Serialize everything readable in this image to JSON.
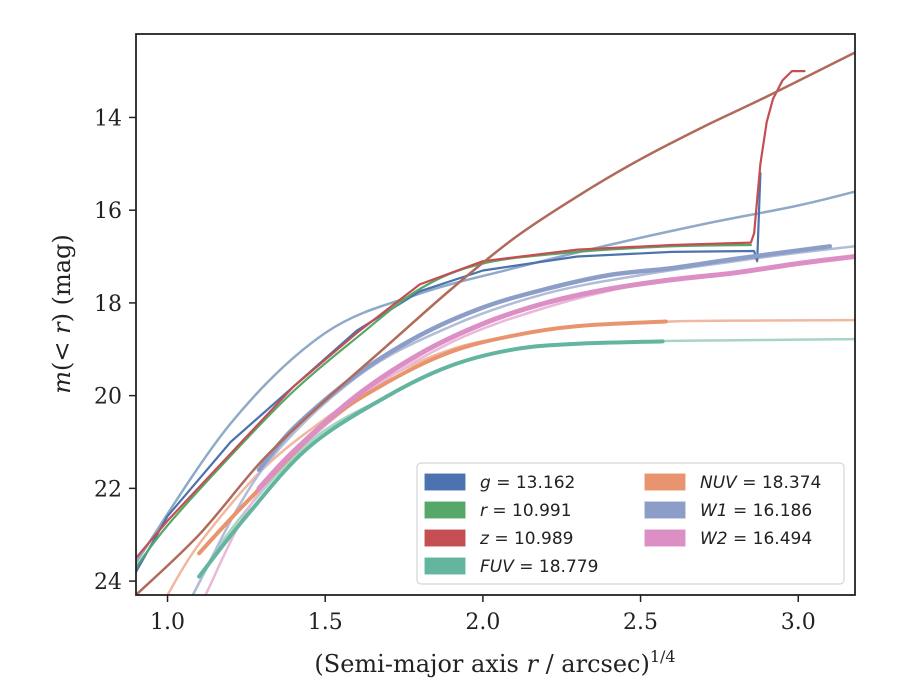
{
  "chart_data": {
    "type": "line",
    "title": "",
    "xlabel": "(Semi-major axis r / arcsec)^1/4",
    "xlabel_parts": {
      "prefix": "(Semi-major axis ",
      "var": "r",
      "mid": " / arcsec)",
      "sup": "1/4"
    },
    "ylabel": "m(<r) (mag)",
    "ylabel_parts": {
      "var1": "m",
      "mid": "(< ",
      "var2": "r",
      "end": ") (mag)"
    },
    "xlim": [
      0.9,
      3.18
    ],
    "ylim": [
      24.3,
      12.2
    ],
    "y_inverted": true,
    "xticks": [
      1.0,
      1.5,
      2.0,
      2.5,
      3.0
    ],
    "xtick_labels": [
      "1.0",
      "1.5",
      "2.0",
      "2.5",
      "3.0"
    ],
    "yticks": [
      14,
      16,
      18,
      20,
      22,
      24
    ],
    "ytick_labels": [
      "14",
      "16",
      "18",
      "20",
      "22",
      "24"
    ],
    "grid": false,
    "legend_placement": "lower-right",
    "legend": [
      {
        "var": "g",
        "text": "= 13.162",
        "color": "#4c72b0"
      },
      {
        "var": "r",
        "text": "= 10.991",
        "color": "#55a868"
      },
      {
        "var": "z",
        "text": "= 10.989",
        "color": "#c44e52"
      },
      {
        "var": "FUV",
        "text": "= 18.779",
        "color": "#64b5a0"
      },
      {
        "var": "NUV",
        "text": "= 18.374",
        "color": "#e8956f"
      },
      {
        "var": "W1",
        "text": "= 16.186",
        "color": "#8c9dc8"
      },
      {
        "var": "W2",
        "text": "= 16.494",
        "color": "#dc8fc4"
      }
    ],
    "series": [
      {
        "key": "g-model",
        "color": "#8faac8",
        "width": 2.5,
        "x": [
          0.9,
          1.2,
          1.5,
          1.8,
          2.1,
          2.4,
          2.7,
          3.0,
          3.18
        ],
        "y": [
          23.6,
          20.6,
          18.65,
          17.8,
          17.25,
          16.75,
          16.3,
          15.9,
          15.6
        ]
      },
      {
        "key": "NUV-model",
        "color": "#f0b8a0",
        "width": 2.5,
        "x": [
          1.0,
          1.1,
          1.3,
          1.5,
          1.7,
          1.9,
          2.1,
          2.3,
          2.6,
          2.9,
          3.18
        ],
        "y": [
          24.3,
          23.2,
          21.6,
          20.5,
          19.6,
          19.0,
          18.7,
          18.5,
          18.4,
          18.38,
          18.37
        ]
      },
      {
        "key": "FUV-model",
        "color": "#a8d4c6",
        "width": 2.5,
        "x": [
          1.08,
          1.2,
          1.45,
          1.7,
          1.9,
          2.1,
          2.3,
          2.6,
          2.9,
          3.18
        ],
        "y": [
          24.3,
          22.9,
          21.0,
          20.0,
          19.35,
          19.0,
          18.88,
          18.82,
          18.8,
          18.78
        ]
      },
      {
        "key": "W1-model",
        "color": "#b0bcd8",
        "width": 2.5,
        "x": [
          1.08,
          1.3,
          1.6,
          1.9,
          2.2,
          2.5,
          2.8,
          3.0,
          3.18
        ],
        "y": [
          24.3,
          21.6,
          19.6,
          18.5,
          17.8,
          17.4,
          17.1,
          16.92,
          16.78
        ]
      },
      {
        "key": "W2-model",
        "color": "#eab8d8",
        "width": 2.5,
        "x": [
          1.12,
          1.3,
          1.6,
          1.9,
          2.2,
          2.5,
          2.8,
          3.0,
          3.18
        ],
        "y": [
          24.3,
          22.0,
          20.1,
          18.85,
          18.1,
          17.6,
          17.35,
          17.15,
          17.0
        ]
      },
      {
        "key": "g",
        "color": "#4c72b0",
        "width": 2.2,
        "x": [
          0.9,
          1.0,
          1.2,
          1.4,
          1.6,
          1.8,
          2.0,
          2.3,
          2.6,
          2.86,
          2.87,
          2.88
        ],
        "y": [
          23.8,
          22.6,
          21.0,
          19.8,
          18.6,
          17.75,
          17.3,
          17.0,
          16.9,
          16.88,
          17.1,
          15.2
        ]
      },
      {
        "key": "r",
        "color": "#55a868",
        "width": 2.2,
        "x": [
          0.9,
          1.0,
          1.2,
          1.4,
          1.6,
          1.8,
          2.0,
          2.3,
          2.6,
          2.85
        ],
        "y": [
          23.7,
          22.8,
          21.3,
          19.9,
          18.75,
          17.7,
          17.15,
          16.9,
          16.78,
          16.75
        ]
      },
      {
        "key": "z",
        "color": "#c44e52",
        "width": 2.2,
        "x": [
          0.9,
          1.0,
          1.2,
          1.4,
          1.6,
          1.8,
          2.0,
          2.3,
          2.6,
          2.85,
          2.86,
          2.88,
          2.9,
          2.92,
          2.95,
          2.98,
          3.02
        ],
        "y": [
          23.5,
          22.7,
          21.25,
          19.8,
          18.65,
          17.6,
          17.1,
          16.85,
          16.75,
          16.7,
          16.5,
          15.0,
          14.1,
          13.6,
          13.2,
          13.0,
          13.0
        ]
      },
      {
        "key": "NUV",
        "color": "#e8956f",
        "width": 4,
        "x": [
          1.1,
          1.25,
          1.5,
          1.7,
          1.9,
          2.1,
          2.3,
          2.58
        ],
        "y": [
          23.4,
          22.3,
          20.6,
          19.7,
          19.05,
          18.7,
          18.5,
          18.4
        ]
      },
      {
        "key": "FUV",
        "color": "#64b5a0",
        "width": 4,
        "x": [
          1.1,
          1.25,
          1.45,
          1.7,
          1.9,
          2.1,
          2.3,
          2.57
        ],
        "y": [
          23.9,
          22.6,
          21.1,
          20.0,
          19.35,
          19.0,
          18.88,
          18.83
        ]
      },
      {
        "key": "W1",
        "color": "#8c9dc8",
        "width": 4.5,
        "x": [
          1.29,
          1.4,
          1.6,
          1.8,
          2.0,
          2.2,
          2.4,
          2.6,
          2.8,
          3.1
        ],
        "y": [
          21.6,
          20.7,
          19.55,
          18.7,
          18.1,
          17.7,
          17.4,
          17.25,
          17.05,
          16.78
        ]
      },
      {
        "key": "W2",
        "color": "#dc8fc4",
        "width": 5,
        "x": [
          1.29,
          1.4,
          1.6,
          1.8,
          2.0,
          2.2,
          2.4,
          2.6,
          2.8,
          3.0,
          3.18
        ],
        "y": [
          22.0,
          21.2,
          20.0,
          19.1,
          18.45,
          18.0,
          17.7,
          17.5,
          17.35,
          17.15,
          17.0
        ]
      },
      {
        "key": "z-model",
        "color": "#b06a5a",
        "width": 2.5,
        "x": [
          0.9,
          1.1,
          1.3,
          1.5,
          1.7,
          1.9,
          2.1,
          2.3,
          2.5,
          2.7,
          2.9,
          3.18
        ],
        "y": [
          24.3,
          23.0,
          21.4,
          20.1,
          18.9,
          17.7,
          16.6,
          15.7,
          14.9,
          14.2,
          13.55,
          12.6
        ]
      }
    ]
  }
}
